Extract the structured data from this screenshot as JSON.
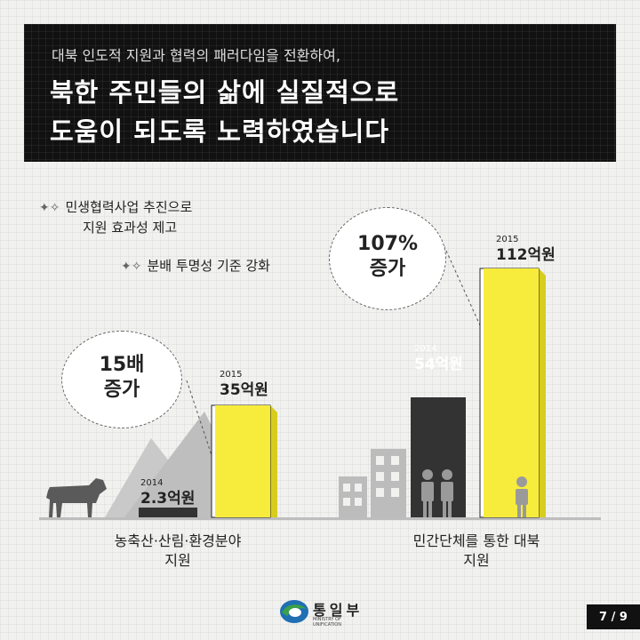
{
  "header": {
    "subtitle": "대북 인도적 지원과 협력의 패러다임을 전환하여,",
    "title_line1": "북한 주민들의 삶에 실질적으로",
    "title_line2": "도움이 되도록 노력하였습니다"
  },
  "notes": [
    {
      "line1": "민생협력사업 추진으로",
      "line2": "지원 효과성 제고"
    },
    {
      "line1": "분배 투명성 기준 강화"
    }
  ],
  "chart_data": [
    {
      "type": "bar",
      "title": "",
      "categories": [
        "2014",
        "2015"
      ],
      "values": [
        2.3,
        35
      ],
      "value_labels": [
        "2.3억원",
        "35억원"
      ],
      "unit": "억원",
      "caption": [
        "농축산·산림·환경분야",
        "지원"
      ],
      "callout": [
        "15배",
        "증가"
      ],
      "colors": [
        "#333333",
        "#f7ec3c"
      ]
    },
    {
      "type": "bar",
      "title": "",
      "categories": [
        "2014",
        "2015"
      ],
      "values": [
        54,
        112
      ],
      "value_labels": [
        "54억원",
        "112억원"
      ],
      "unit": "억원",
      "caption": [
        "민간단체를 통한 대북",
        "지원"
      ],
      "callout": [
        "107%",
        "증가"
      ],
      "colors": [
        "#333333",
        "#f7ec3c"
      ]
    }
  ],
  "footer": {
    "logo_text": "통일부",
    "logo_sub": "MINISTRY OF UNIFICATION",
    "page": "7 / 9"
  }
}
